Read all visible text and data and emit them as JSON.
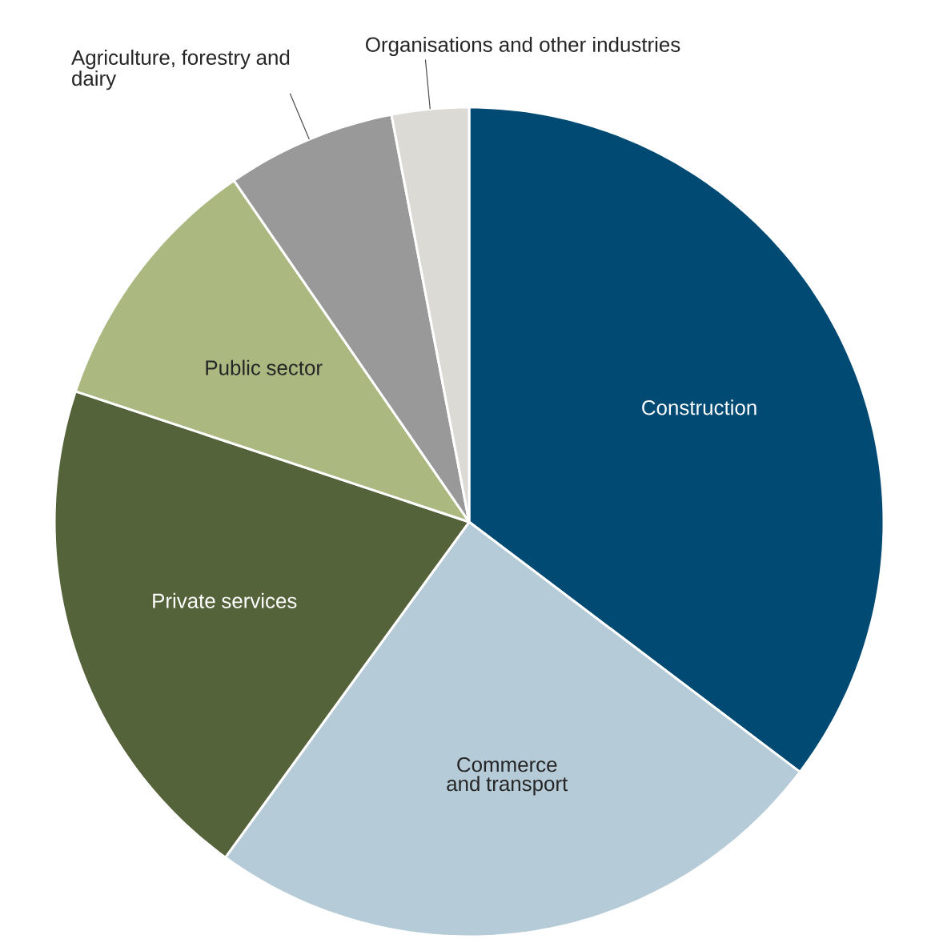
{
  "chart_data": {
    "type": "pie",
    "categories": [
      "Construction",
      "Commerce and transport",
      "Private services",
      "Public sector",
      "Agriculture, forestry and dairy",
      "Organisations and other industries"
    ],
    "values": [
      35.3,
      24.7,
      20.1,
      10.3,
      6.6,
      3.0
    ],
    "colors": [
      "#004a74",
      "#b5cbd7",
      "#55633a",
      "#abb981",
      "#999999",
      "#dcdad5"
    ]
  }
}
